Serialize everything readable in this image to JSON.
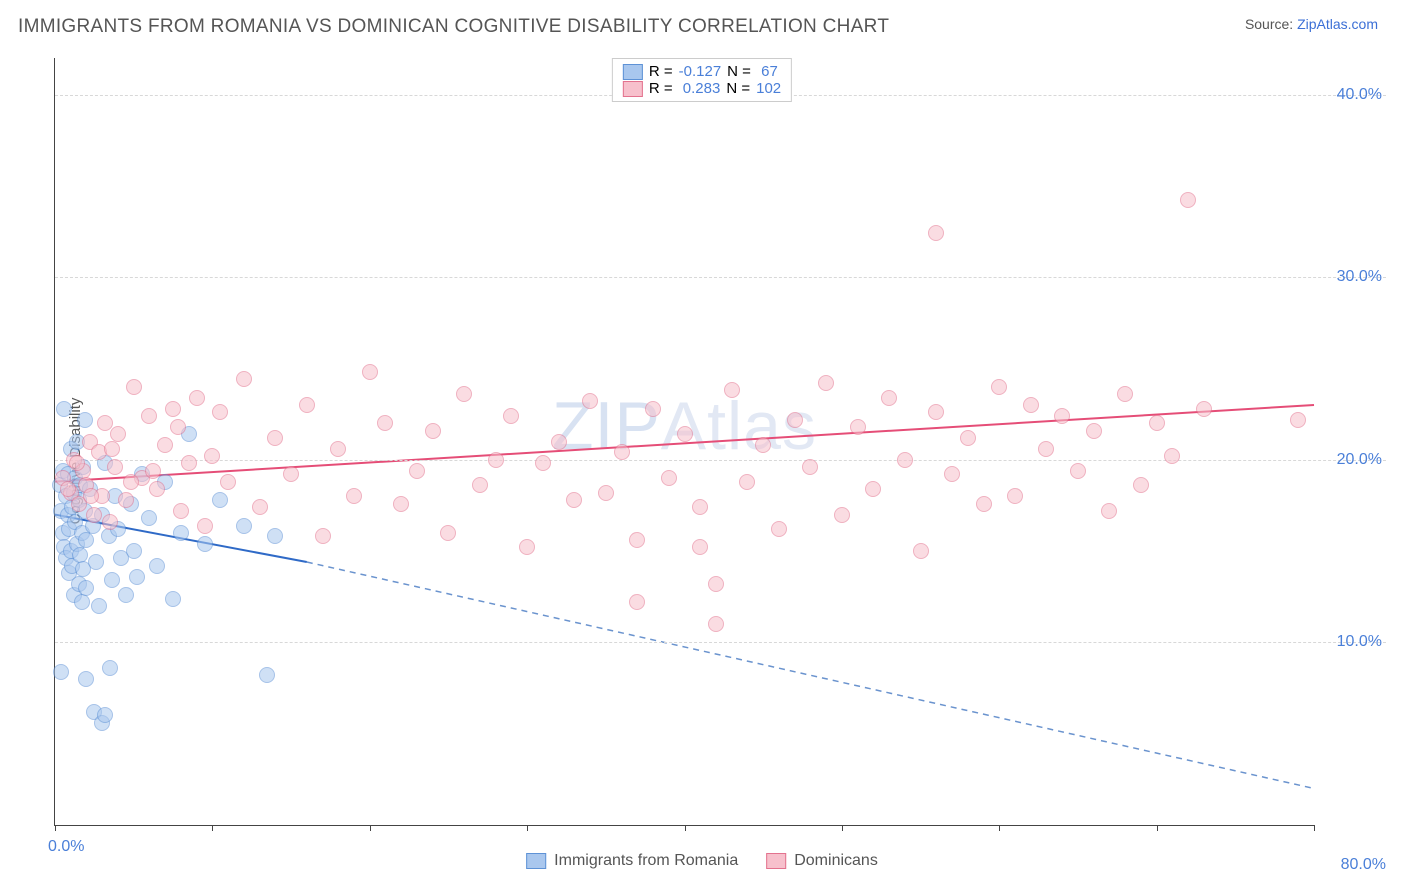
{
  "title": "IMMIGRANTS FROM ROMANIA VS DOMINICAN COGNITIVE DISABILITY CORRELATION CHART",
  "source_prefix": "Source: ",
  "source_link": "ZipAtlas.com",
  "ylabel": "Cognitive Disability",
  "watermark": "ZIPAtlas",
  "chart": {
    "type": "scatter",
    "background_color": "#ffffff",
    "grid_color": "#d8d8d8",
    "axis_color": "#444444",
    "xlim": [
      0,
      80
    ],
    "ylim": [
      0,
      42
    ],
    "xtick_positions": [
      0,
      10,
      20,
      30,
      40,
      50,
      60,
      70,
      80
    ],
    "xtick_labels": {
      "0": "0.0%",
      "80": "80.0%"
    },
    "ytick_positions": [
      10,
      20,
      30,
      40
    ],
    "ytick_labels": {
      "10": "10.0%",
      "20": "20.0%",
      "30": "30.0%",
      "40": "40.0%"
    },
    "point_radius": 8,
    "point_opacity": 0.55,
    "series": [
      {
        "name": "Immigrants from Romania",
        "color_fill": "#a9c7ee",
        "color_stroke": "#5e92d6",
        "R": "-0.127",
        "N": "67",
        "regression": {
          "x1": 0,
          "y1": 17.0,
          "x2": 16,
          "y2": 14.4,
          "extrapolate_to_x": 80,
          "extrapolate_y": 2.0,
          "solid_stroke": "#2f6ac7",
          "dash_stroke": "#6a93ce",
          "width": 2
        },
        "points": [
          [
            0.3,
            18.6
          ],
          [
            0.4,
            17.2
          ],
          [
            0.5,
            19.4
          ],
          [
            0.5,
            16.0
          ],
          [
            0.6,
            15.2
          ],
          [
            0.6,
            22.8
          ],
          [
            0.7,
            14.6
          ],
          [
            0.7,
            18.0
          ],
          [
            0.8,
            17.0
          ],
          [
            0.8,
            19.2
          ],
          [
            0.9,
            16.2
          ],
          [
            0.9,
            13.8
          ],
          [
            1.0,
            15.0
          ],
          [
            1.0,
            20.6
          ],
          [
            1.1,
            17.4
          ],
          [
            1.1,
            14.2
          ],
          [
            1.2,
            18.2
          ],
          [
            1.2,
            12.6
          ],
          [
            1.3,
            16.6
          ],
          [
            1.3,
            19.0
          ],
          [
            1.4,
            15.4
          ],
          [
            1.4,
            21.0
          ],
          [
            1.5,
            13.2
          ],
          [
            1.5,
            17.8
          ],
          [
            1.6,
            14.8
          ],
          [
            1.6,
            18.6
          ],
          [
            1.7,
            12.2
          ],
          [
            1.7,
            16.0
          ],
          [
            1.8,
            19.6
          ],
          [
            1.8,
            14.0
          ],
          [
            1.9,
            17.2
          ],
          [
            1.9,
            22.2
          ],
          [
            2.0,
            15.6
          ],
          [
            2.0,
            13.0
          ],
          [
            2.2,
            18.4
          ],
          [
            2.4,
            16.4
          ],
          [
            2.6,
            14.4
          ],
          [
            2.8,
            12.0
          ],
          [
            3.0,
            17.0
          ],
          [
            3.2,
            19.8
          ],
          [
            3.4,
            15.8
          ],
          [
            3.6,
            13.4
          ],
          [
            3.8,
            18.0
          ],
          [
            4.0,
            16.2
          ],
          [
            4.2,
            14.6
          ],
          [
            4.5,
            12.6
          ],
          [
            4.8,
            17.6
          ],
          [
            5.0,
            15.0
          ],
          [
            5.2,
            13.6
          ],
          [
            5.5,
            19.2
          ],
          [
            6.0,
            16.8
          ],
          [
            6.5,
            14.2
          ],
          [
            7.0,
            18.8
          ],
          [
            7.5,
            12.4
          ],
          [
            8.0,
            16.0
          ],
          [
            8.5,
            21.4
          ],
          [
            9.5,
            15.4
          ],
          [
            10.5,
            17.8
          ],
          [
            12.0,
            16.4
          ],
          [
            14.0,
            15.8
          ],
          [
            0.4,
            8.4
          ],
          [
            2.0,
            8.0
          ],
          [
            2.5,
            6.2
          ],
          [
            3.0,
            5.6
          ],
          [
            3.2,
            6.0
          ],
          [
            3.5,
            8.6
          ],
          [
            13.5,
            8.2
          ]
        ]
      },
      {
        "name": "Dominicans",
        "color_fill": "#f7c0cc",
        "color_stroke": "#e3728e",
        "R": "0.283",
        "N": "102",
        "regression": {
          "x1": 0,
          "y1": 18.8,
          "x2": 80,
          "y2": 23.0,
          "solid_stroke": "#e54d77",
          "width": 2
        },
        "points": [
          [
            0.5,
            19.0
          ],
          [
            1.0,
            18.2
          ],
          [
            1.2,
            20.0
          ],
          [
            1.5,
            17.6
          ],
          [
            1.8,
            19.4
          ],
          [
            2.0,
            18.6
          ],
          [
            2.2,
            21.0
          ],
          [
            2.5,
            17.0
          ],
          [
            2.8,
            20.4
          ],
          [
            3.0,
            18.0
          ],
          [
            3.2,
            22.0
          ],
          [
            3.5,
            16.6
          ],
          [
            3.8,
            19.6
          ],
          [
            4.0,
            21.4
          ],
          [
            4.5,
            17.8
          ],
          [
            5.0,
            24.0
          ],
          [
            5.5,
            19.0
          ],
          [
            6.0,
            22.4
          ],
          [
            6.5,
            18.4
          ],
          [
            7.0,
            20.8
          ],
          [
            7.5,
            22.8
          ],
          [
            8.0,
            17.2
          ],
          [
            8.5,
            19.8
          ],
          [
            9.0,
            23.4
          ],
          [
            9.5,
            16.4
          ],
          [
            10.0,
            20.2
          ],
          [
            10.5,
            22.6
          ],
          [
            11.0,
            18.8
          ],
          [
            12.0,
            24.4
          ],
          [
            13.0,
            17.4
          ],
          [
            14.0,
            21.2
          ],
          [
            15.0,
            19.2
          ],
          [
            16.0,
            23.0
          ],
          [
            17.0,
            15.8
          ],
          [
            18.0,
            20.6
          ],
          [
            19.0,
            18.0
          ],
          [
            20.0,
            24.8
          ],
          [
            21.0,
            22.0
          ],
          [
            22.0,
            17.6
          ],
          [
            23.0,
            19.4
          ],
          [
            24.0,
            21.6
          ],
          [
            25.0,
            16.0
          ],
          [
            26.0,
            23.6
          ],
          [
            27.0,
            18.6
          ],
          [
            28.0,
            20.0
          ],
          [
            29.0,
            22.4
          ],
          [
            30.0,
            15.2
          ],
          [
            31.0,
            19.8
          ],
          [
            32.0,
            21.0
          ],
          [
            33.0,
            17.8
          ],
          [
            34.0,
            23.2
          ],
          [
            35.0,
            18.2
          ],
          [
            36.0,
            20.4
          ],
          [
            37.0,
            15.6
          ],
          [
            38.0,
            22.8
          ],
          [
            39.0,
            19.0
          ],
          [
            40.0,
            21.4
          ],
          [
            41.0,
            17.4
          ],
          [
            42.0,
            11.0
          ],
          [
            43.0,
            23.8
          ],
          [
            44.0,
            18.8
          ],
          [
            45.0,
            20.8
          ],
          [
            46.0,
            16.2
          ],
          [
            47.0,
            22.2
          ],
          [
            48.0,
            19.6
          ],
          [
            49.0,
            24.2
          ],
          [
            50.0,
            17.0
          ],
          [
            51.0,
            21.8
          ],
          [
            52.0,
            18.4
          ],
          [
            53.0,
            23.4
          ],
          [
            54.0,
            20.0
          ],
          [
            55.0,
            15.0
          ],
          [
            56.0,
            22.6
          ],
          [
            57.0,
            19.2
          ],
          [
            58.0,
            21.2
          ],
          [
            59.0,
            17.6
          ],
          [
            60.0,
            24.0
          ],
          [
            61.0,
            18.0
          ],
          [
            62.0,
            23.0
          ],
          [
            63.0,
            20.6
          ],
          [
            64.0,
            22.4
          ],
          [
            65.0,
            19.4
          ],
          [
            66.0,
            21.6
          ],
          [
            67.0,
            17.2
          ],
          [
            68.0,
            23.6
          ],
          [
            69.0,
            18.6
          ],
          [
            70.0,
            22.0
          ],
          [
            71.0,
            20.2
          ],
          [
            0.8,
            18.4
          ],
          [
            1.4,
            19.8
          ],
          [
            2.3,
            18.0
          ],
          [
            3.6,
            20.6
          ],
          [
            4.8,
            18.8
          ],
          [
            6.2,
            19.4
          ],
          [
            7.8,
            21.8
          ],
          [
            42.0,
            13.2
          ],
          [
            37.0,
            12.2
          ],
          [
            41.0,
            15.2
          ],
          [
            56.0,
            32.4
          ],
          [
            72.0,
            34.2
          ],
          [
            73.0,
            22.8
          ],
          [
            79.0,
            22.2
          ]
        ]
      }
    ]
  },
  "legend_top": {
    "r_label": "R =",
    "n_label": "N ="
  },
  "legend_bottom": [
    {
      "swatch_fill": "#a9c7ee",
      "swatch_stroke": "#5e92d6",
      "label": "Immigrants from Romania"
    },
    {
      "swatch_fill": "#f7c0cc",
      "swatch_stroke": "#e3728e",
      "label": "Dominicans"
    }
  ]
}
